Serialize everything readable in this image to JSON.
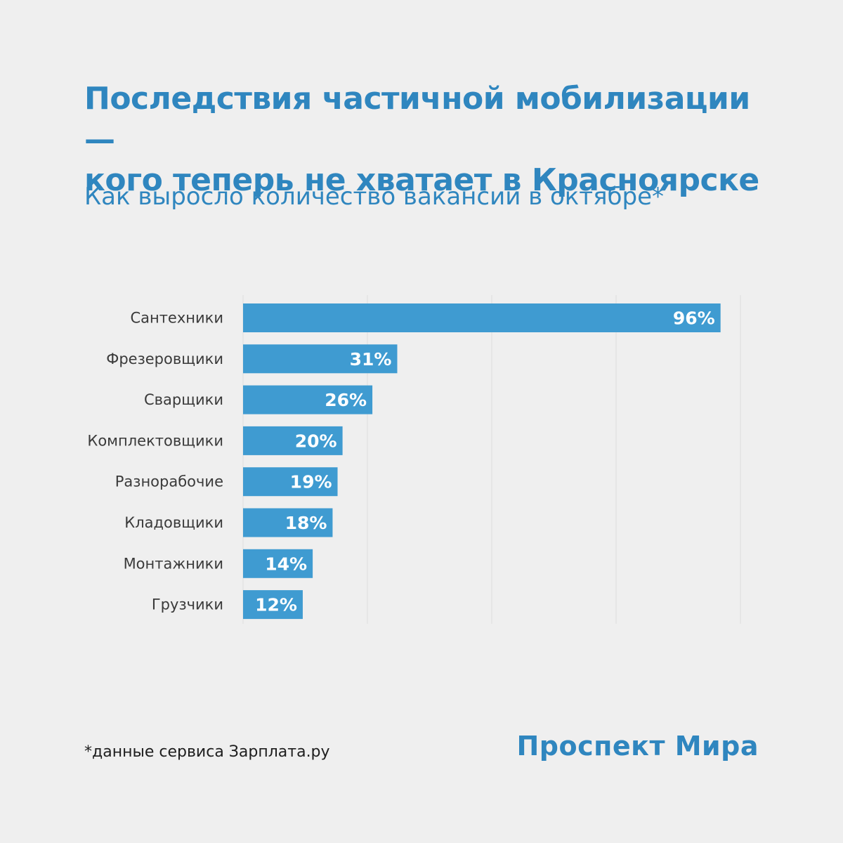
{
  "header": {
    "title_line1": "Последствия частичной мобилизации —",
    "title_line2": "кого теперь не хватает в Красноярске",
    "subtitle": "Как выросло количество вакансий в октябре*"
  },
  "chart_data": {
    "type": "bar",
    "orientation": "horizontal",
    "title": "Как выросло количество вакансий в октябре*",
    "categories": [
      "Сантехники",
      "Фрезеровщики",
      "Сварщики",
      "Комплектовщики",
      "Разнорабочие",
      "Кладовщики",
      "Монтажники",
      "Грузчики"
    ],
    "values": [
      96,
      31,
      26,
      20,
      19,
      18,
      14,
      12
    ],
    "value_labels": [
      "96%",
      "31%",
      "26%",
      "20%",
      "19%",
      "18%",
      "14%",
      "12%"
    ],
    "unit": "%",
    "xlim": [
      0,
      100
    ],
    "grid": true,
    "bar_color": "#3f9bd1",
    "grid_color": "#dddddd"
  },
  "footer": {
    "note": "*данные сервиса Зарплата.ру",
    "brand": "Проспект Мира"
  },
  "colors": {
    "accent": "#2f86bf",
    "background": "#efefef"
  }
}
